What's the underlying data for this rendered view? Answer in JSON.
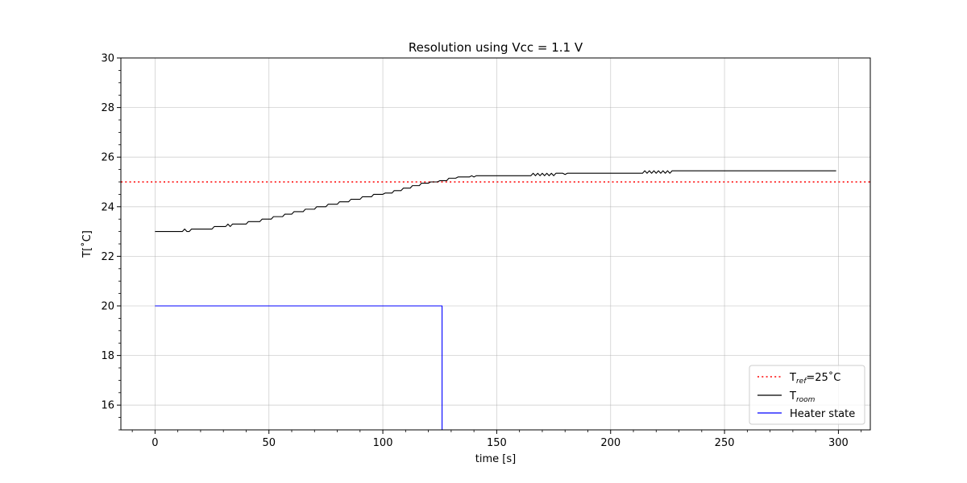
{
  "chart_data": {
    "type": "line",
    "title": "Resolution using Vcc = 1.1 V",
    "xlabel": "time [s]",
    "ylabel": "T[˚C]",
    "xlim": [
      -15,
      314
    ],
    "ylim": [
      15,
      30
    ],
    "xticks": [
      0,
      50,
      100,
      150,
      200,
      250,
      300
    ],
    "yticks": [
      16,
      18,
      20,
      22,
      24,
      26,
      28,
      30
    ],
    "grid": true,
    "legend_position": "lower-right",
    "reference": {
      "name_main": "T",
      "name_sub": "ref",
      "name_suffix": "=25˚C",
      "value": 25,
      "color": "#ff0000",
      "style": "dotted"
    },
    "series": [
      {
        "name_main": "T",
        "name_sub": "room",
        "color": "#000000",
        "x": [
          0,
          12,
          13,
          14,
          15,
          16,
          17,
          25,
          26,
          31,
          32,
          33,
          34,
          35,
          40,
          41,
          46,
          47,
          51,
          52,
          56,
          57,
          60,
          61,
          65,
          66,
          70,
          71,
          75,
          76,
          80,
          81,
          85,
          86,
          90,
          91,
          95,
          96,
          100,
          101,
          104,
          105,
          108,
          109,
          112,
          113,
          116,
          117,
          120,
          121,
          124,
          125,
          128,
          129,
          132,
          133,
          138,
          139,
          140,
          141,
          165,
          166,
          167,
          168,
          169,
          170,
          171,
          172,
          173,
          174,
          175,
          176,
          177,
          178,
          179,
          180,
          181,
          214,
          215,
          216,
          217,
          218,
          219,
          220,
          221,
          222,
          223,
          224,
          225,
          226,
          227,
          228,
          229,
          299
        ],
        "y": [
          23.0,
          23.0,
          23.1,
          23.0,
          23.0,
          23.1,
          23.1,
          23.1,
          23.2,
          23.2,
          23.3,
          23.2,
          23.3,
          23.3,
          23.3,
          23.4,
          23.4,
          23.5,
          23.5,
          23.6,
          23.6,
          23.7,
          23.7,
          23.8,
          23.8,
          23.9,
          23.9,
          24.0,
          24.0,
          24.1,
          24.1,
          24.2,
          24.2,
          24.3,
          24.3,
          24.4,
          24.4,
          24.5,
          24.5,
          24.55,
          24.55,
          24.65,
          24.65,
          24.75,
          24.75,
          24.85,
          24.85,
          24.95,
          24.95,
          25.0,
          25.0,
          25.05,
          25.05,
          25.15,
          25.15,
          25.2,
          25.2,
          25.25,
          25.2,
          25.25,
          25.25,
          25.35,
          25.25,
          25.35,
          25.25,
          25.35,
          25.25,
          25.35,
          25.25,
          25.35,
          25.25,
          25.35,
          25.35,
          25.35,
          25.35,
          25.3,
          25.35,
          25.35,
          25.45,
          25.35,
          25.45,
          25.35,
          25.45,
          25.35,
          25.45,
          25.35,
          25.45,
          25.35,
          25.45,
          25.35,
          25.45,
          25.45,
          25.45,
          25.45
        ]
      },
      {
        "name": "Heater state",
        "color": "#0000ff",
        "x": [
          0,
          126,
          126
        ],
        "y": [
          20,
          20,
          15
        ]
      }
    ]
  }
}
